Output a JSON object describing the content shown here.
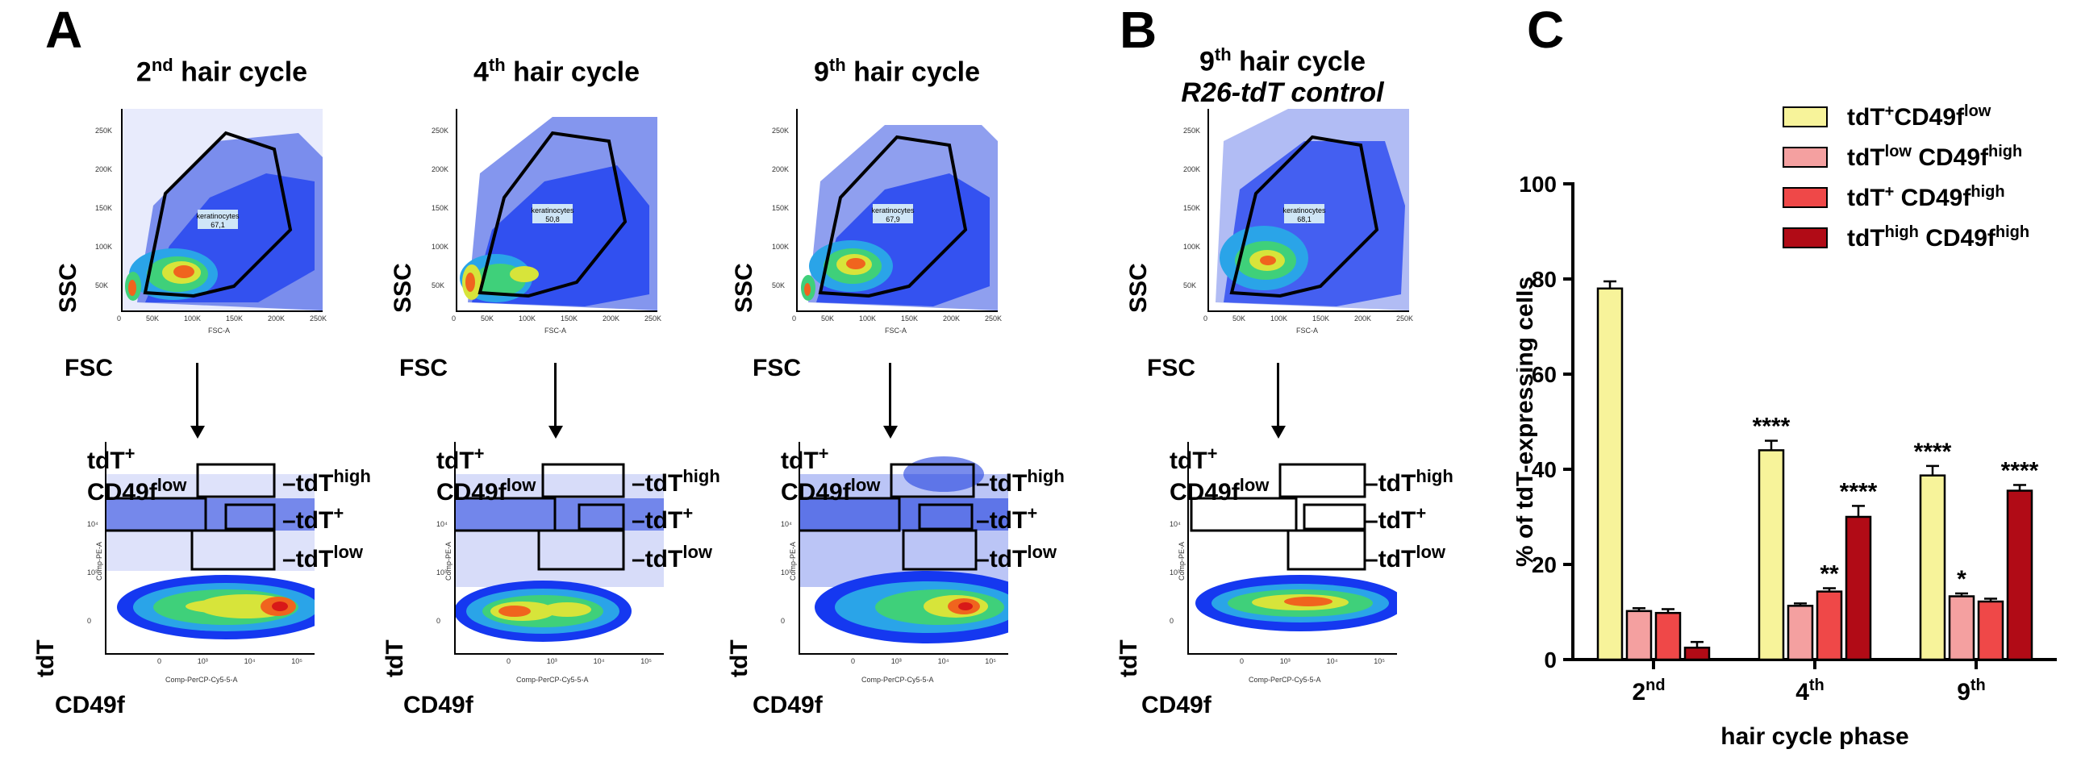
{
  "panel_a": {
    "letter": "A",
    "cycles": [
      {
        "num": "2",
        "sup": "nd",
        "rest": " hair cycle",
        "gate_name": "keratinocytes",
        "gate_pct": "67,1"
      },
      {
        "num": "4",
        "sup": "th",
        "rest": " hair cycle",
        "gate_name": "keratinocytes",
        "gate_pct": "50,8"
      },
      {
        "num": "9",
        "sup": "th",
        "rest": " hair cycle",
        "gate_name": "keratinocytes",
        "gate_pct": "67,9"
      }
    ]
  },
  "panel_b": {
    "letter": "B",
    "title_num": "9",
    "title_sup": "th",
    "title_rest": " hair cycle",
    "title_line2": "R26-tdT control",
    "gate_name": "keratinocytes",
    "gate_pct": "68,1"
  },
  "scatter_axes": {
    "ssc": "SSC",
    "fsc": "FSC",
    "ssc_small": "SSC-A",
    "fsc_small": "FSC-A",
    "yticks": [
      "250K",
      "200K",
      "150K",
      "100K",
      "50K",
      "0"
    ],
    "xticks": [
      "0",
      "50K",
      "100K",
      "150K",
      "200K",
      "250K"
    ]
  },
  "facs_axes": {
    "tdt": "tdT",
    "cd49f": "CD49f",
    "pe_small": "Comp-PE-A",
    "percp_small": "Comp-PerCP-Cy5-5-A",
    "yticks": [
      "10⁴",
      "10³",
      "0"
    ],
    "xticks": [
      "0",
      "10³",
      "10⁴",
      "10⁵"
    ]
  },
  "gates": {
    "tdtplus_cd49flow_1": "tdT",
    "tdtplus_cd49flow_1_sup": "+",
    "tdtplus_cd49flow_2": "CD49f",
    "tdtplus_cd49flow_2_sup": "low",
    "tdthigh": "tdT",
    "tdthigh_sup": "high",
    "tdtplus": "tdT",
    "tdtplus_sup": "+",
    "tdtlow": "tdT",
    "tdtlow_sup": "low"
  },
  "panel_c": {
    "letter": "C",
    "legend": [
      {
        "a": "tdT",
        "as": "+",
        "b": "CD49f",
        "bs": "low",
        "color": "#f7f39a"
      },
      {
        "a": "tdT",
        "as": "low",
        "b": " CD49f",
        "bs": "high",
        "color": "#f4a0a0"
      },
      {
        "a": "tdT",
        "as": "+",
        "b": " CD49f",
        "bs": "high",
        "color": "#ef4848"
      },
      {
        "a": "tdT",
        "as": "high",
        "b": " CD49f",
        "bs": "high",
        "color": "#b10b16"
      }
    ]
  },
  "chart_data": {
    "type": "bar",
    "ylabel": "% of tdT-expressing cells",
    "xlabel": "hair cycle phase",
    "ylim": [
      0,
      100
    ],
    "yticks": [
      0,
      20,
      40,
      60,
      80,
      100
    ],
    "groups": [
      {
        "label": "2",
        "sup": "nd"
      },
      {
        "label": "4",
        "sup": "th"
      },
      {
        "label": "9",
        "sup": "th"
      }
    ],
    "series": [
      {
        "name": "tdT+CD49flow",
        "color": "#f7f39a",
        "values": [
          78,
          44,
          38.7
        ],
        "errors": [
          1.5,
          2,
          2
        ],
        "stars": [
          "",
          "****",
          "****"
        ]
      },
      {
        "name": "tdTlow CD49fhigh",
        "color": "#f4a0a0",
        "values": [
          10.2,
          11.3,
          13.3
        ],
        "errors": [
          0.6,
          0.5,
          0.6
        ],
        "stars": [
          "",
          "",
          "*"
        ]
      },
      {
        "name": "tdT+ CD49fhigh",
        "color": "#ef4848",
        "values": [
          9.8,
          14.3,
          12.2
        ],
        "errors": [
          0.8,
          0.7,
          0.6
        ],
        "stars": [
          "",
          "**",
          ""
        ]
      },
      {
        "name": "tdThigh CD49fhigh",
        "color": "#b10b16",
        "values": [
          2.5,
          30,
          35.5
        ],
        "errors": [
          1.2,
          2.3,
          1.2
        ],
        "stars": [
          "",
          "****",
          "****"
        ]
      }
    ]
  }
}
